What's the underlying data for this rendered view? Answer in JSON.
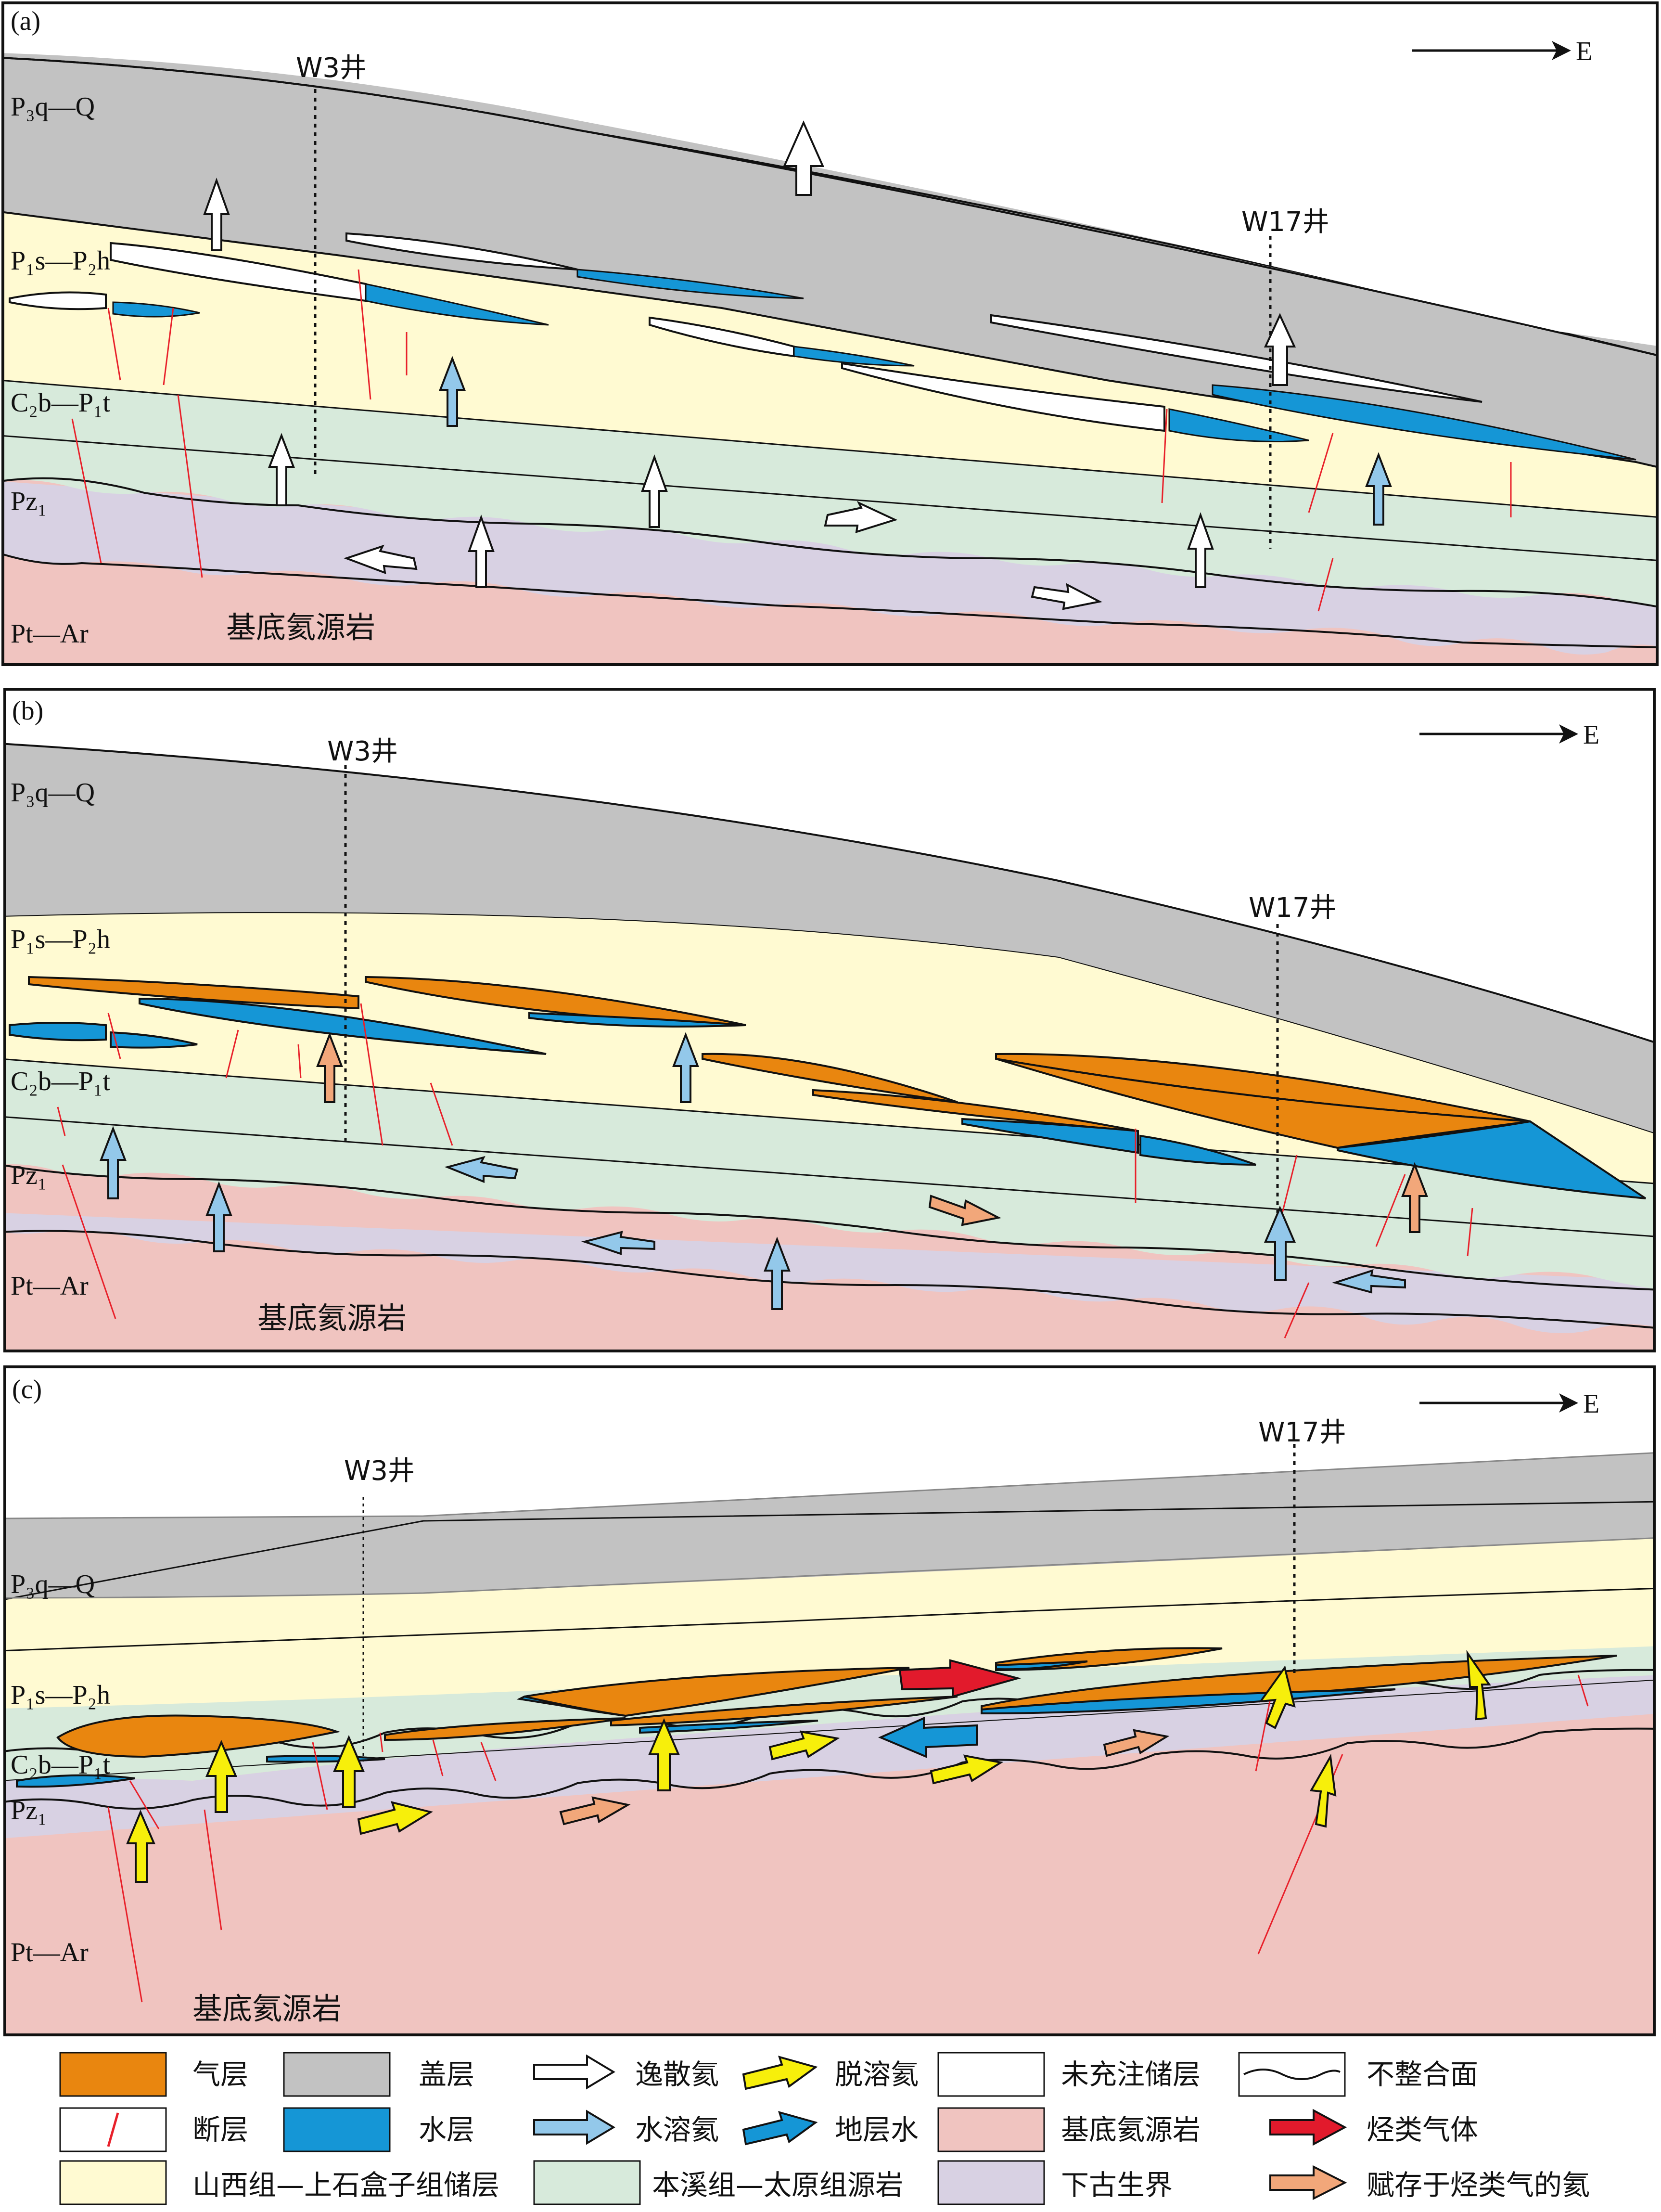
{
  "panels": [
    {
      "tag": "(a)",
      "east": "E",
      "well_left": "W3井",
      "well_right": "W17井",
      "layers": {
        "cap": "P₃q—Q",
        "reservoir": "P₁s—P₂h",
        "source": "C₂b—P₁t",
        "pz": "Pz₁",
        "basement": "Pt—Ar"
      },
      "basement_caption": "基底氦源岩"
    },
    {
      "tag": "(b)",
      "east": "E",
      "well_left": "W3井",
      "well_right": "W17井",
      "layers": {
        "cap": "P₃q—Q",
        "reservoir": "P₁s—P₂h",
        "source": "C₂b—P₁t",
        "pz": "Pz₁",
        "basement": "Pt—Ar"
      },
      "basement_caption": "基底氦源岩"
    },
    {
      "tag": "(c)",
      "east": "E",
      "well_left": "W3井",
      "well_right": "W17井",
      "layers": {
        "cap": "P₃q—Q",
        "reservoir": "P₁s—P₂h",
        "source": "C₂b—P₁t",
        "pz": "Pz₁",
        "basement": "Pt—Ar"
      },
      "basement_caption": "基底氦源岩"
    }
  ],
  "colors": {
    "cap": "#c2c2c2",
    "reservoir": "#fffad2",
    "source": "#d7eadb",
    "pz": "#d8d1e3",
    "basement": "#f0c4c0",
    "gas": "#e9860f",
    "water": "#1596d6",
    "fault": "#e8202a",
    "hydrocarbon": "#e21a2c",
    "gas_helium": "#f2a77a",
    "exsolved": "#f7ef0b",
    "dissolved": "#93c8ea"
  },
  "legend": [
    {
      "icon": "gas-swatch",
      "label": "气层"
    },
    {
      "icon": "cap-swatch",
      "label": "盖层"
    },
    {
      "icon": "white-arrow-icon",
      "label": "逸散氦"
    },
    {
      "icon": "yellow-arrow-icon",
      "label": "脱溶氦"
    },
    {
      "icon": "white-swatch",
      "label": "未充注储层"
    },
    {
      "icon": "wavy-line-icon",
      "label": "不整合面"
    },
    {
      "icon": "fault-icon",
      "label": "断层"
    },
    {
      "icon": "water-swatch",
      "label": "水层"
    },
    {
      "icon": "lightblue-arrow-icon",
      "label": "水溶氦"
    },
    {
      "icon": "blue-arrow-icon",
      "label": "地层水"
    },
    {
      "icon": "basement-swatch",
      "label": "基底氦源岩"
    },
    {
      "icon": "red-arrow-icon",
      "label": "烃类气体"
    },
    {
      "icon": "reservoir-swatch",
      "label": "山西组—上石盒子组储层"
    },
    {
      "icon": "source-swatch",
      "label": "本溪组—太原组源岩"
    },
    {
      "icon": "pz-swatch",
      "label": "下古生界"
    },
    {
      "icon": "orange-arrow-icon",
      "label": "赋存于烃类气的氦"
    }
  ]
}
